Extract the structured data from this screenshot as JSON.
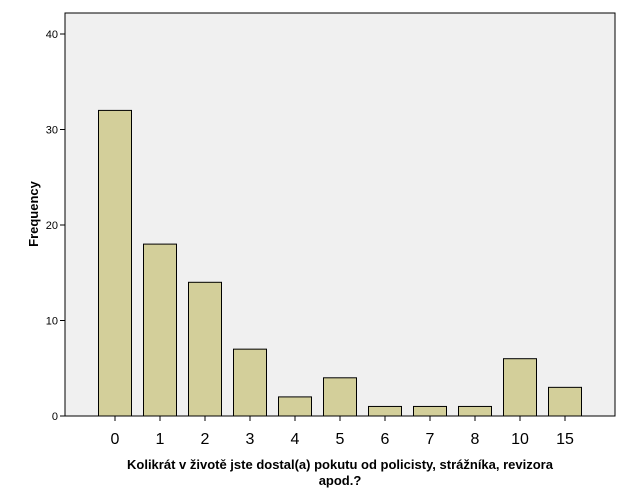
{
  "chart_data": {
    "type": "bar",
    "categories": [
      "0",
      "1",
      "2",
      "3",
      "4",
      "5",
      "6",
      "7",
      "8",
      "10",
      "15"
    ],
    "values": [
      32,
      18,
      14,
      7,
      2,
      4,
      1,
      1,
      1,
      6,
      3
    ],
    "xlabel_lines": [
      "Kolikrát v životě jste dostal(a) pokutu od policisty, strážníka, revizora",
      "apod.?"
    ],
    "ylabel": "Frequency",
    "ylim": [
      0,
      40
    ],
    "yticks": [
      0,
      10,
      20,
      30,
      40
    ],
    "grid": false,
    "colors": {
      "bar_fill": "#d3cf9a",
      "bar_stroke": "#000000",
      "plot_background": "#f0f0f0",
      "frame": "#000000"
    }
  }
}
